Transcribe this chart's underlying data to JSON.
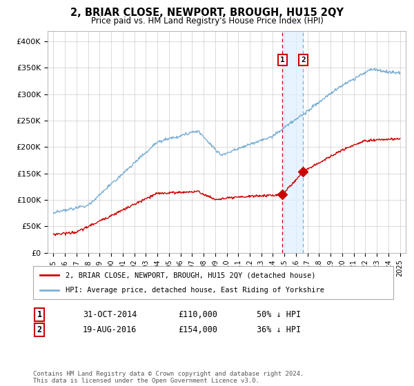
{
  "title": "2, BRIAR CLOSE, NEWPORT, BROUGH, HU15 2QY",
  "subtitle": "Price paid vs. HM Land Registry's House Price Index (HPI)",
  "ylabel_ticks": [
    "£0",
    "£50K",
    "£100K",
    "£150K",
    "£200K",
    "£250K",
    "£300K",
    "£350K",
    "£400K"
  ],
  "ytick_values": [
    0,
    50000,
    100000,
    150000,
    200000,
    250000,
    300000,
    350000,
    400000
  ],
  "ylim": [
    0,
    420000
  ],
  "xlim_start": 1994.5,
  "xlim_end": 2025.5,
  "legend_property": "2, BRIAR CLOSE, NEWPORT, BROUGH, HU15 2QY (detached house)",
  "legend_hpi": "HPI: Average price, detached house, East Riding of Yorkshire",
  "sale1_date": "31-OCT-2014",
  "sale1_price": 110000,
  "sale1_pct": "50% ↓ HPI",
  "sale1_year": 2014.83,
  "sale2_date": "19-AUG-2016",
  "sale2_price": 154000,
  "sale2_pct": "36% ↓ HPI",
  "sale2_year": 2016.63,
  "footnote": "Contains HM Land Registry data © Crown copyright and database right 2024.\nThis data is licensed under the Open Government Licence v3.0.",
  "property_color": "#cc0000",
  "hpi_color": "#7aafd4",
  "vline1_color": "#cc0000",
  "vline2_color": "#7aafd4",
  "shade_color": "#ddeeff",
  "background_color": "#ffffff",
  "grid_color": "#cccccc"
}
